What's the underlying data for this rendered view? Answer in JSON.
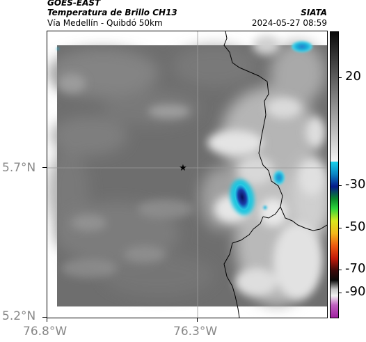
{
  "header": {
    "satellite": "GOES-EAST",
    "product": "Temperatura de Brillo CH13",
    "route": "Vía Medellín - Quibdó 50km",
    "organization": "SIATA",
    "timestamp": "2024-05-27 08:59"
  },
  "map": {
    "y_ticks": [
      "5.7°N",
      "5.2°N"
    ],
    "x_ticks": [
      "76.8°W",
      "76.3°W"
    ],
    "marker": "star-marker",
    "gridlines": true
  },
  "colorbar": {
    "labels": [
      "20",
      "-30",
      "-50",
      "-70",
      "-90"
    ]
  },
  "colors": {
    "cold_core": "#0a1a6e",
    "cyan": "#12c6de",
    "border_line": "#000000"
  }
}
